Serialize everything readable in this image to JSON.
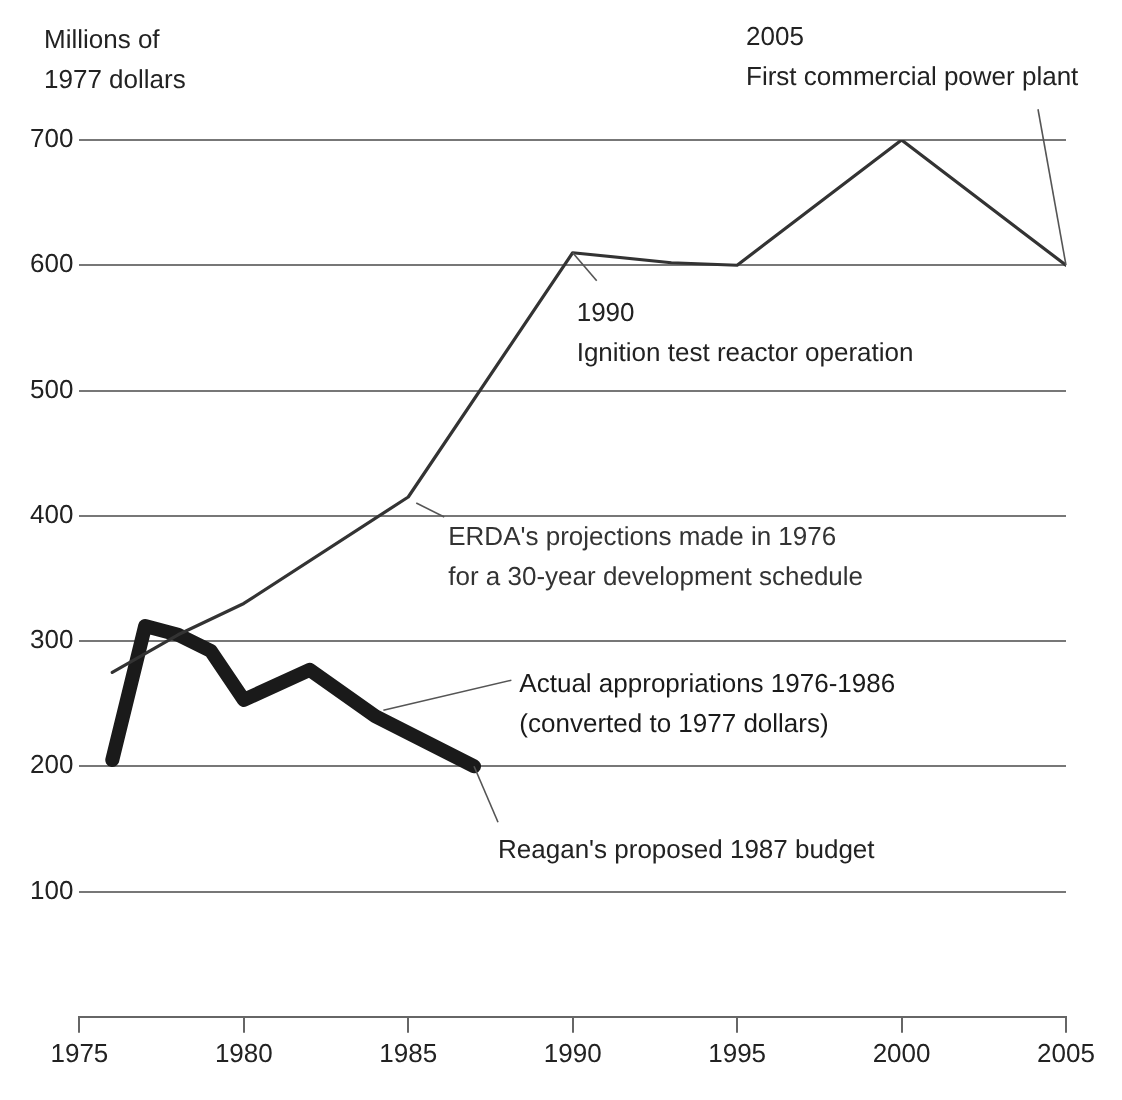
{
  "chart_data": {
    "type": "line",
    "ylabel": "Millions of\n1977 dollars",
    "series": [
      {
        "name": "ERDA's projections made in 1976\nfor a 30-year development schedule",
        "color": "#333333",
        "x": [
          1976,
          1978,
          1980,
          1985,
          1990,
          1993,
          1995,
          2000,
          2005
        ],
        "values": [
          275,
          305,
          330,
          415,
          610,
          602,
          600,
          700,
          600
        ]
      },
      {
        "name": "Actual appropriations 1976-1986\n(converted to 1977 dollars)",
        "color": "#1a1a1a",
        "x": [
          1976,
          1977,
          1978,
          1979,
          1980,
          1982,
          1984,
          1987
        ],
        "values": [
          205,
          312,
          305,
          292,
          253,
          277,
          240,
          200
        ]
      }
    ],
    "annotations": [
      {
        "text": "2005\nFirst commercial power plant",
        "x": 2005,
        "y": 600
      },
      {
        "text": "1990\nIgnition test reactor operation",
        "x": 1990,
        "y": 610
      },
      {
        "text": "Reagan's proposed 1987 budget",
        "x": 1987,
        "y": 200
      }
    ],
    "xlim": [
      1975,
      2005
    ],
    "xticks": [
      1975,
      1980,
      1985,
      1990,
      1995,
      2000,
      2005
    ],
    "ylim": [
      0,
      700
    ],
    "yticks": [
      100,
      200,
      300,
      400,
      500,
      600,
      700
    ],
    "grid": "y",
    "legend": false,
    "marker": "none",
    "line_style": "solid"
  }
}
